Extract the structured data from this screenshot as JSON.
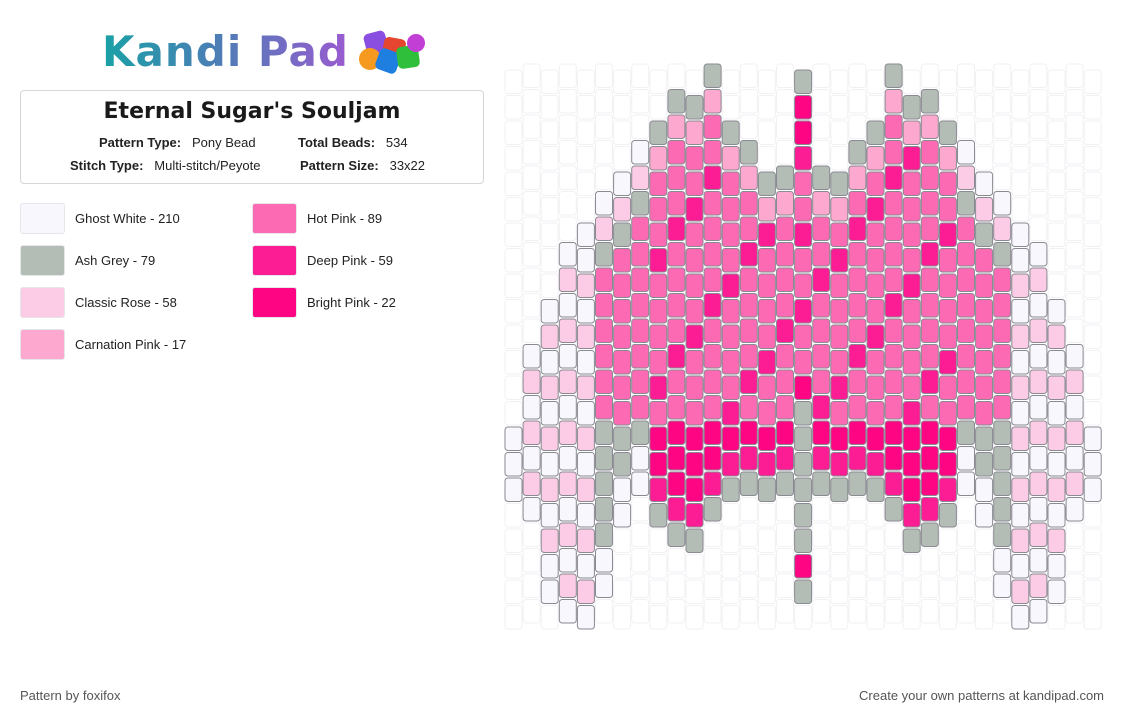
{
  "brand": {
    "logo_text": "Kandi Pad",
    "logo_icon": "bead-cubes-icon"
  },
  "pattern": {
    "title": "Eternal Sugar's Souljam",
    "pattern_type_label": "Pattern Type:",
    "pattern_type": "Pony Bead",
    "total_beads_label": "Total Beads:",
    "total_beads": "534",
    "stitch_type_label": "Stitch Type:",
    "stitch_type": "Multi-stitch/Peyote",
    "pattern_size_label": "Pattern Size:",
    "pattern_size": "33x22"
  },
  "legend": [
    {
      "label": "Ghost White - 210",
      "color": "#f7f7fd"
    },
    {
      "label": "Ash Grey - 79",
      "color": "#b4bdb5"
    },
    {
      "label": "Classic Rose - 58",
      "color": "#fccce6"
    },
    {
      "label": "Carnation Pink - 17",
      "color": "#fda8ce"
    },
    {
      "label": "Hot Pink - 89",
      "color": "#fd6ab4"
    },
    {
      "label": "Deep Pink - 59",
      "color": "#fc1c93"
    },
    {
      "label": "Bright Pink - 22",
      "color": "#fe0584"
    }
  ],
  "footer": {
    "credit": "Pattern by foxifox",
    "cta": "Create your own patterns at kandipad.com"
  }
}
